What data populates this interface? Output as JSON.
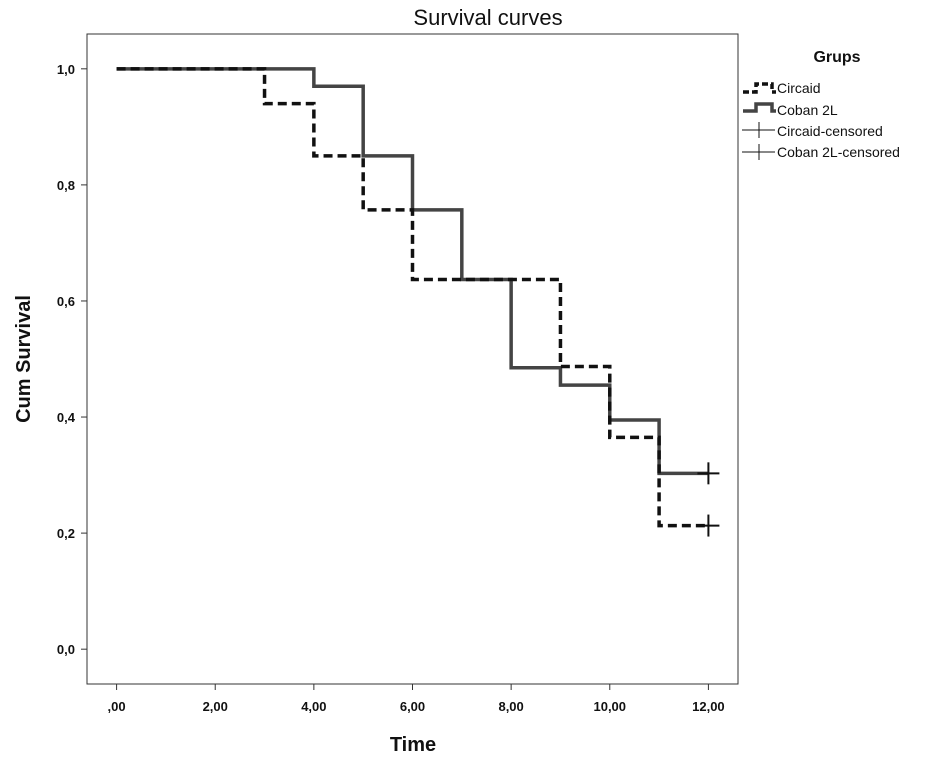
{
  "chart_data": {
    "type": "line",
    "title": "Survival curves",
    "xlabel": "Time",
    "ylabel": "Cum Survival",
    "xlim": [
      -0.6,
      12.6
    ],
    "ylim": [
      -0.06,
      1.06
    ],
    "x_ticks": [
      0,
      2,
      4,
      6,
      8,
      10,
      12
    ],
    "x_tick_labels": [
      ",00",
      "2,00",
      "4,00",
      "6,00",
      "8,00",
      "10,00",
      "12,00"
    ],
    "y_ticks": [
      0,
      0.2,
      0.4,
      0.6,
      0.8,
      1.0
    ],
    "y_tick_labels": [
      "0,0",
      "0,2",
      "0,4",
      "0,6",
      "0,8",
      "1,0"
    ],
    "grid": false,
    "legend_title": "Grups",
    "legend_position": "right",
    "series": [
      {
        "name": "Circaid",
        "style": "dashed",
        "color": "#111111",
        "step": [
          [
            0,
            1.0
          ],
          [
            3,
            0.94
          ],
          [
            4,
            0.85
          ],
          [
            5,
            0.757
          ],
          [
            6,
            0.637
          ],
          [
            9,
            0.487
          ],
          [
            10,
            0.365
          ],
          [
            11,
            0.213
          ],
          [
            12,
            0.213
          ]
        ],
        "censored": [
          [
            12,
            0.213
          ]
        ]
      },
      {
        "name": "Coban 2L",
        "style": "solid",
        "color": "#444444",
        "step": [
          [
            0,
            1.0
          ],
          [
            4,
            0.97
          ],
          [
            5,
            0.85
          ],
          [
            6,
            0.757
          ],
          [
            7,
            0.637
          ],
          [
            8,
            0.485
          ],
          [
            9,
            0.455
          ],
          [
            10,
            0.395
          ],
          [
            11,
            0.303
          ],
          [
            12,
            0.303
          ]
        ],
        "censored": [
          [
            12,
            0.303
          ]
        ]
      }
    ],
    "legend_entries": [
      "Circaid",
      "Coban 2L",
      "Circaid-censored",
      "Coban 2L-censored"
    ]
  }
}
